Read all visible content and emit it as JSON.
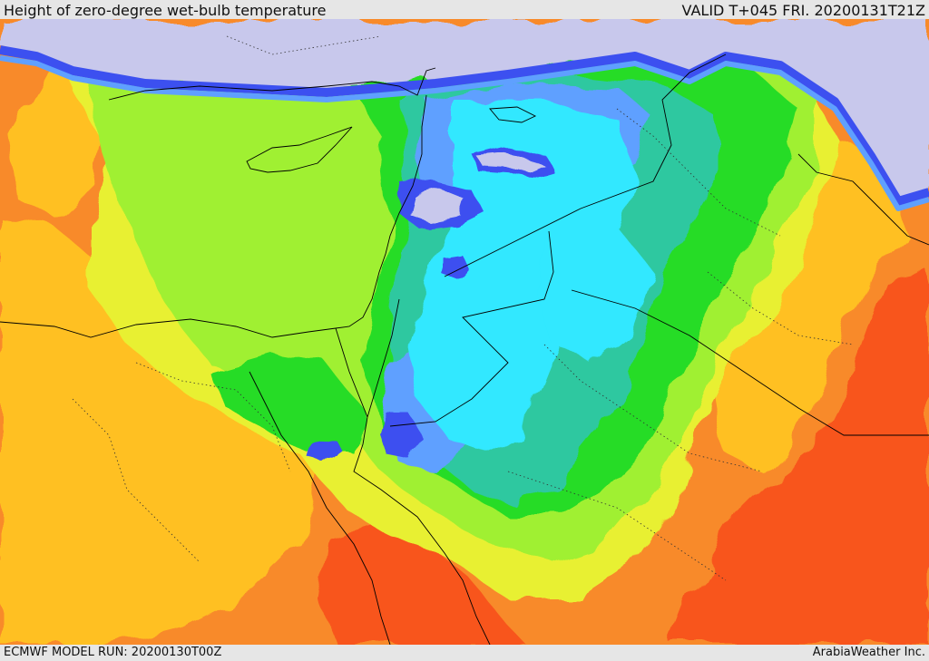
{
  "header": {
    "title": "Height of zero-degree wet-bulb temperature",
    "valid": "VALID T+045 FRI. 20200131T21Z"
  },
  "footer": {
    "model_run": "ECMWF MODEL RUN: 20200130T00Z",
    "credit": "ArabiaWeather Inc."
  },
  "palette": {
    "lavender": "#c8c8ec",
    "blue": "#3c50f0",
    "light_blue": "#5fa0ff",
    "cyan": "#30e8ff",
    "teal": "#2ec8a0",
    "green": "#26dc26",
    "yellow_green": "#a0f030",
    "yellow": "#e8f032",
    "gold": "#ffc020",
    "orange": "#f88a2a",
    "red_orange": "#f8541a",
    "border": "#000000"
  }
}
